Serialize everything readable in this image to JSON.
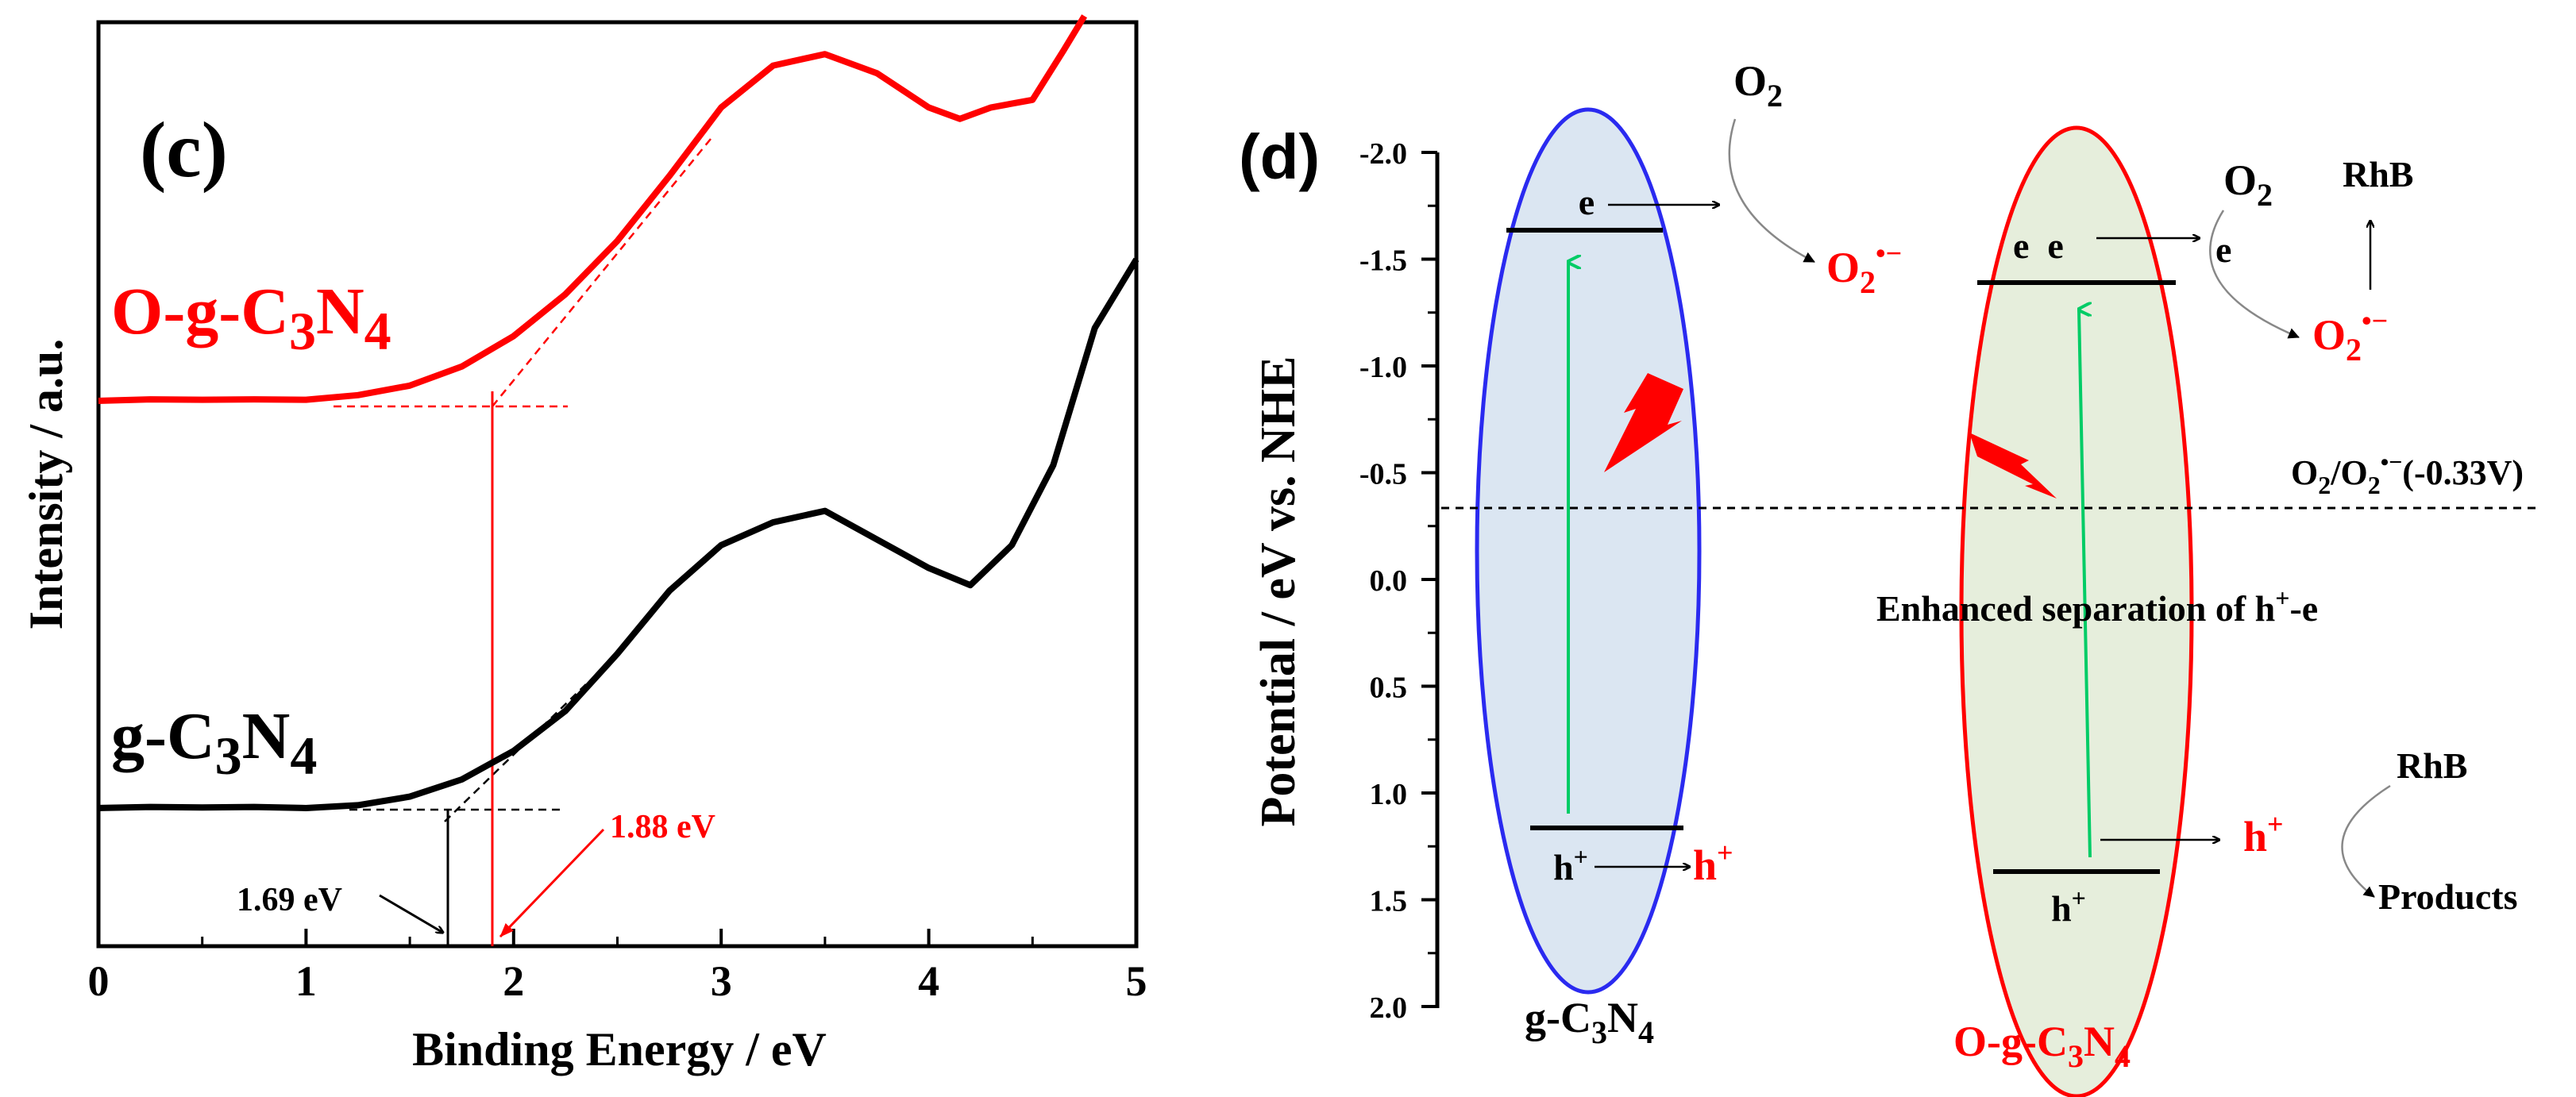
{
  "chart_data": [
    {
      "panel": "(c)",
      "type": "line",
      "title": "",
      "xlabel": "Binding Energy / eV",
      "ylabel": "Intensity / a.u.",
      "xlim": [
        0,
        5
      ],
      "xticks": [
        "0",
        "1",
        "2",
        "3",
        "4",
        "5"
      ],
      "series": [
        {
          "name": "O-g-C3N4",
          "color": "#ff0000",
          "x": [
            0.0,
            0.25,
            0.5,
            0.75,
            1.0,
            1.25,
            1.5,
            1.75,
            2.0,
            2.25,
            2.5,
            2.75,
            3.0,
            3.25,
            3.5,
            3.75,
            4.0,
            4.15,
            4.3,
            4.5,
            4.65,
            4.75
          ],
          "values": [
            0.0,
            0.004,
            0.003,
            0.004,
            0.003,
            0.015,
            0.04,
            0.09,
            0.17,
            0.28,
            0.42,
            0.59,
            0.77,
            0.88,
            0.91,
            0.86,
            0.77,
            0.74,
            0.77,
            0.79,
            0.92,
            1.01
          ]
        },
        {
          "name": "g-C3N4",
          "color": "#000000",
          "x": [
            0.0,
            0.25,
            0.5,
            0.75,
            1.0,
            1.25,
            1.5,
            1.75,
            2.0,
            2.25,
            2.5,
            2.75,
            3.0,
            3.25,
            3.5,
            3.75,
            4.0,
            4.2,
            4.4,
            4.6,
            4.8,
            5.0
          ],
          "values": [
            0.0,
            0.002,
            0.001,
            0.002,
            0.0,
            0.005,
            0.02,
            0.05,
            0.1,
            0.17,
            0.27,
            0.38,
            0.46,
            0.5,
            0.52,
            0.47,
            0.42,
            0.39,
            0.46,
            0.6,
            0.84,
            0.96
          ]
        }
      ],
      "annotations": {
        "panel_label": "(c)",
        "o_label_main": "O-g-C",
        "o_label_sub1": "3",
        "o_label_mid": "N",
        "o_label_sub2": "4",
        "g_label_main": "g-C",
        "g_label_sub1": "3",
        "g_label_mid": "N",
        "g_label_sub2": "4",
        "edge_o": "1.88 eV",
        "edge_g": "1.69 eV",
        "edge_o_value": 1.88,
        "edge_g_value": 1.69
      }
    },
    {
      "panel": "(d)",
      "type": "diagram",
      "ylabel": "Potential / eV vs. NHE",
      "ylim": [
        -2.0,
        2.0
      ],
      "yticks": [
        "-2.0",
        "-1.5",
        "-1.0",
        "-0.5",
        "0.0",
        "0.5",
        "1.0",
        "1.5",
        "2.0"
      ],
      "reference_potential": -0.33,
      "labels": {
        "panel_label": "(d)",
        "o2_top_left": "O",
        "o2_top_left_sub": "2",
        "o2_radical_left": "O",
        "o2_radical_left_sub": "2",
        "o2_radical_left_sup": "•−",
        "e_left": "e",
        "h_left": "h",
        "h_left_sup": "+",
        "h_left_out": "h",
        "h_left_out_sup": "+",
        "e_right_pair": "e  e",
        "e_right_out": "e",
        "o2_top_right": "O",
        "o2_top_right_sub": "2",
        "rhb_top": "RhB",
        "o2_radical_right": "O",
        "o2_radical_right_sub": "2",
        "o2_radical_right_sup": "•−",
        "redox_label_1": "O",
        "redox_label_sub1": "2",
        "redox_label_2": "/O",
        "redox_label_sub2": "2",
        "redox_label_sup": "•−",
        "redox_label_3": "(-0.33V)",
        "enhanced_1": "Enhanced separation of h",
        "enhanced_sup": "+",
        "enhanced_2": "-e",
        "h_right_out": "h",
        "h_right_out_sup": "+",
        "rhb_bottom": "RhB",
        "products": "Products",
        "h_right": "h",
        "h_right_sup": "+",
        "bottom_left_main": "g-C",
        "bottom_left_sub1": "3",
        "bottom_left_mid": "N",
        "bottom_left_sub2": "4",
        "bottom_right_main": "O-g-C",
        "bottom_right_sub1": "3",
        "bottom_right_mid": "N",
        "bottom_right_sub2": "4"
      },
      "bands": [
        {
          "material": "g-C3N4",
          "cb": -1.64,
          "vb": 1.2
        },
        {
          "material": "O-g-C3N4",
          "cb": -1.4,
          "vb": 1.38
        }
      ]
    }
  ]
}
